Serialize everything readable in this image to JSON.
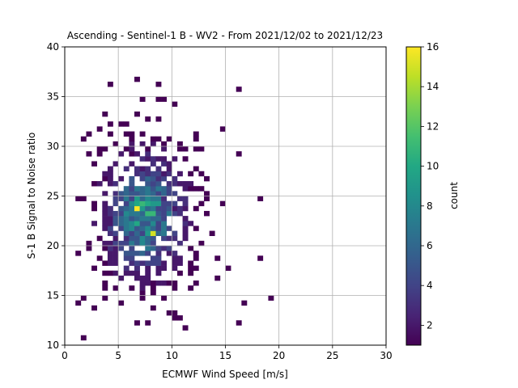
{
  "chart_data": {
    "type": "heatmap",
    "title": "Ascending - Sentinel-1 B - WV2 - From 2021/12/02 to 2021/12/23",
    "xlabel": "ECMWF Wind Speed [m/s]",
    "ylabel": "S-1 B Signal to Noise ratio",
    "xlim": [
      0,
      30
    ],
    "ylim": [
      10,
      40
    ],
    "xticks": [
      "0",
      "5",
      "10",
      "15",
      "20",
      "25",
      "30"
    ],
    "yticks": [
      "10",
      "15",
      "20",
      "25",
      "30",
      "35",
      "40"
    ],
    "grid": true,
    "colormap": "viridis",
    "colorbar": {
      "label": "count",
      "range": [
        1,
        16
      ],
      "ticks": [
        "2",
        "4",
        "6",
        "8",
        "10",
        "12",
        "14",
        "16"
      ]
    },
    "bin_size": [
      0.5,
      0.5
    ],
    "density_model": {
      "core_center": [
        7.5,
        23.0
      ],
      "core_spread": [
        2.8,
        4.6
      ],
      "peak_count": 16,
      "notable_bins": [
        {
          "x": 6.5,
          "y": 23.5,
          "count": 16
        },
        {
          "x": 8.0,
          "y": 21.0,
          "count": 15
        }
      ],
      "data_extent_x": [
        0.5,
        21.5
      ],
      "data_extent_y": [
        10.0,
        37.5
      ]
    }
  }
}
